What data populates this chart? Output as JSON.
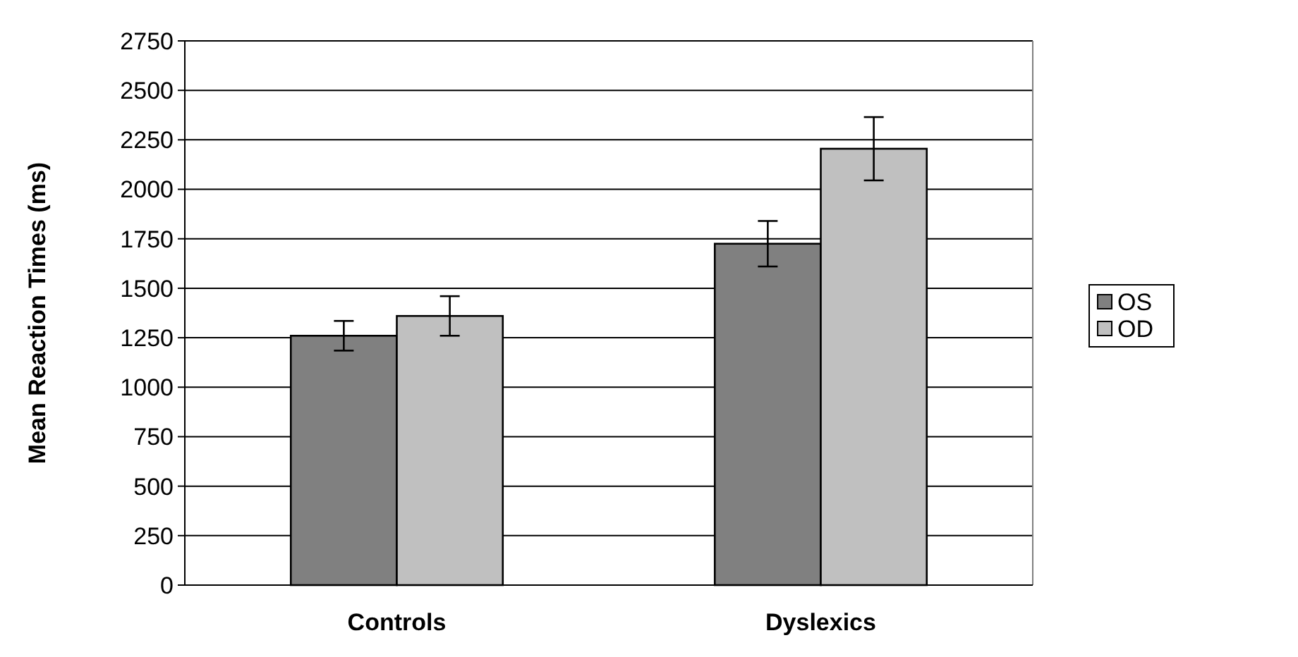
{
  "chart_data": {
    "type": "bar",
    "ylabel": "Mean Reaction Times (ms)",
    "categories": [
      "Controls",
      "Dyslexics"
    ],
    "series": [
      {
        "name": "OS",
        "color": "#808080",
        "values": [
          1260,
          1725
        ],
        "errors": [
          75,
          115
        ]
      },
      {
        "name": "OD",
        "color": "#c0c0c0",
        "values": [
          1360,
          2205
        ],
        "errors": [
          100,
          160
        ]
      }
    ],
    "ylim": [
      0,
      2750
    ],
    "yticks": [
      0,
      250,
      500,
      750,
      1000,
      1250,
      1500,
      1750,
      2000,
      2250,
      2500,
      2750
    ],
    "grid": "y",
    "legend": "right"
  }
}
